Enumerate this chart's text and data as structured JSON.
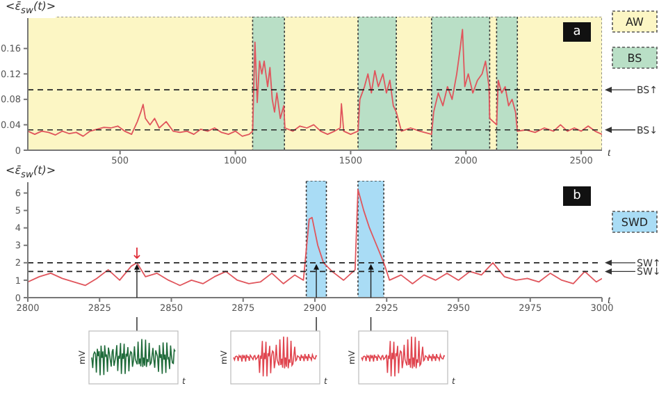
{
  "chart_data": [
    {
      "type": "line",
      "ylabel": "<ε̄$_{sw}$(t)>",
      "xlabel": "t",
      "annotations": [
        "a",
        "AW",
        "BS"
      ],
      "x": [
        100,
        130,
        160,
        190,
        220,
        250,
        280,
        310,
        340,
        370,
        400,
        430,
        460,
        490,
        520,
        550,
        575,
        590,
        600,
        610,
        630,
        650,
        670,
        700,
        730,
        760,
        790,
        820,
        850,
        880,
        910,
        940,
        970,
        1000,
        1030,
        1060,
        1075,
        1085,
        1095,
        1105,
        1115,
        1125,
        1140,
        1150,
        1160,
        1170,
        1180,
        1195,
        1210,
        1215,
        1250,
        1280,
        1310,
        1340,
        1370,
        1400,
        1430,
        1455,
        1460,
        1470,
        1500,
        1532,
        1540,
        1560,
        1575,
        1590,
        1605,
        1620,
        1640,
        1655,
        1670,
        1685,
        1698,
        1720,
        1760,
        1800,
        1851,
        1860,
        1880,
        1900,
        1920,
        1940,
        1960,
        1975,
        1985,
        1995,
        2010,
        2030,
        2050,
        2070,
        2085,
        2100,
        2103,
        2133,
        2140,
        2155,
        2170,
        2185,
        2200,
        2215,
        2223,
        2260,
        2300,
        2340,
        2380,
        2410,
        2440,
        2470,
        2500,
        2530,
        2560,
        2590
      ],
      "series": [
        {
          "color": "#e0555c",
          "values": [
            0.03,
            0.025,
            0.03,
            0.028,
            0.024,
            0.03,
            0.026,
            0.028,
            0.022,
            0.03,
            0.033,
            0.036,
            0.035,
            0.038,
            0.03,
            0.025,
            0.045,
            0.06,
            0.072,
            0.05,
            0.04,
            0.05,
            0.035,
            0.045,
            0.03,
            0.028,
            0.03,
            0.025,
            0.033,
            0.03,
            0.035,
            0.028,
            0.025,
            0.03,
            0.022,
            0.025,
            0.03,
            0.17,
            0.075,
            0.14,
            0.12,
            0.14,
            0.1,
            0.13,
            0.08,
            0.06,
            0.09,
            0.05,
            0.07,
            0.035,
            0.03,
            0.038,
            0.035,
            0.04,
            0.03,
            0.025,
            0.03,
            0.035,
            0.073,
            0.03,
            0.025,
            0.03,
            0.08,
            0.1,
            0.12,
            0.09,
            0.125,
            0.1,
            0.12,
            0.09,
            0.11,
            0.07,
            0.06,
            0.03,
            0.035,
            0.03,
            0.025,
            0.06,
            0.09,
            0.07,
            0.1,
            0.08,
            0.12,
            0.16,
            0.19,
            0.1,
            0.12,
            0.09,
            0.11,
            0.12,
            0.14,
            0.1,
            0.05,
            0.04,
            0.11,
            0.09,
            0.1,
            0.07,
            0.08,
            0.06,
            0.03,
            0.032,
            0.028,
            0.035,
            0.03,
            0.04,
            0.03,
            0.035,
            0.03,
            0.038,
            0.03,
            0.025
          ]
        }
      ],
      "xlim": [
        100,
        2590
      ],
      "xticks": [
        500,
        1000,
        1500,
        2000,
        2500
      ],
      "ylim": [
        0,
        0.21
      ],
      "yticks": [
        0,
        0.04,
        0.08,
        0.12,
        0.16
      ],
      "grid": false,
      "legend": "right",
      "marker": "none",
      "line_style": "solid",
      "bands": [
        {
          "axis": "x",
          "from": 100,
          "to": 2590,
          "color": "#fcf6c4"
        },
        {
          "axis": "x",
          "from": 1075,
          "to": 1213,
          "color": "#b9dfc6"
        },
        {
          "axis": "x",
          "from": 1532,
          "to": 1698,
          "color": "#b9dfc6"
        },
        {
          "axis": "x",
          "from": 1851,
          "to": 2103,
          "color": "#b9dfc6"
        },
        {
          "axis": "x",
          "from": 2133,
          "to": 2223,
          "color": "#b9dfc6"
        }
      ],
      "ref_lines": [
        {
          "axis": "y",
          "value": 0.095,
          "label": "BS↑",
          "line_style": "dashed"
        },
        {
          "axis": "y",
          "value": 0.032,
          "label": "BS↓",
          "line_style": "dashed"
        }
      ]
    },
    {
      "type": "line",
      "ylabel": "<ε̄$_{sw}$(t)>",
      "xlabel": "t",
      "annotations": [
        "b",
        "SWD",
        "mV",
        "mV",
        "mV",
        {
          "text": "↓",
          "x": 2838,
          "y": 2
        }
      ],
      "x": [
        2800,
        2804,
        2808,
        2812,
        2816,
        2820,
        2824,
        2828,
        2832,
        2836,
        2838,
        2841,
        2845,
        2849,
        2853,
        2857,
        2861,
        2865,
        2869,
        2873,
        2877,
        2881,
        2885,
        2889,
        2893,
        2896,
        2898,
        2899,
        2901,
        2903,
        2906,
        2910,
        2914,
        2915,
        2917,
        2919,
        2921,
        2924,
        2926,
        2930,
        2934,
        2938,
        2942,
        2946,
        2950,
        2954,
        2958,
        2962,
        2966,
        2970,
        2974,
        2978,
        2982,
        2986,
        2990,
        2994,
        2998,
        3000
      ],
      "series": [
        {
          "color": "#e0555c",
          "values": [
            0.9,
            1.2,
            1.4,
            1.1,
            0.9,
            0.7,
            1.1,
            1.6,
            1.0,
            1.8,
            2.0,
            1.2,
            1.4,
            1.0,
            0.7,
            1.0,
            0.8,
            1.2,
            1.5,
            1.0,
            0.8,
            0.9,
            1.4,
            0.8,
            1.3,
            1.0,
            4.5,
            4.6,
            3.0,
            2.0,
            1.5,
            1.0,
            1.6,
            6.2,
            5.0,
            4.0,
            3.2,
            2.0,
            1.0,
            1.3,
            0.8,
            1.3,
            1.0,
            1.4,
            1.0,
            1.5,
            1.3,
            2.0,
            1.2,
            1.0,
            1.1,
            0.9,
            1.4,
            1.0,
            0.8,
            1.5,
            0.9,
            1.1
          ]
        }
      ],
      "xlim": [
        2800,
        3000
      ],
      "xticks": [
        2800,
        2825,
        2850,
        2875,
        2900,
        2925,
        2950,
        2975,
        3000
      ],
      "ylim": [
        0,
        6.7
      ],
      "yticks": [
        0,
        1,
        2,
        3,
        4,
        5,
        6
      ],
      "grid": false,
      "legend": "right",
      "marker": "none",
      "line_style": "solid",
      "bands": [
        {
          "axis": "x",
          "from": 2897,
          "to": 2904,
          "color": "#a9dcf5"
        },
        {
          "axis": "x",
          "from": 2915,
          "to": 2924,
          "color": "#a9dcf5"
        }
      ],
      "ref_lines": [
        {
          "axis": "y",
          "value": 2,
          "label": "SW↑",
          "line_style": "dashed"
        },
        {
          "axis": "y",
          "value": 1.5,
          "label": "SW↓",
          "line_style": "dashed"
        }
      ]
    }
  ]
}
